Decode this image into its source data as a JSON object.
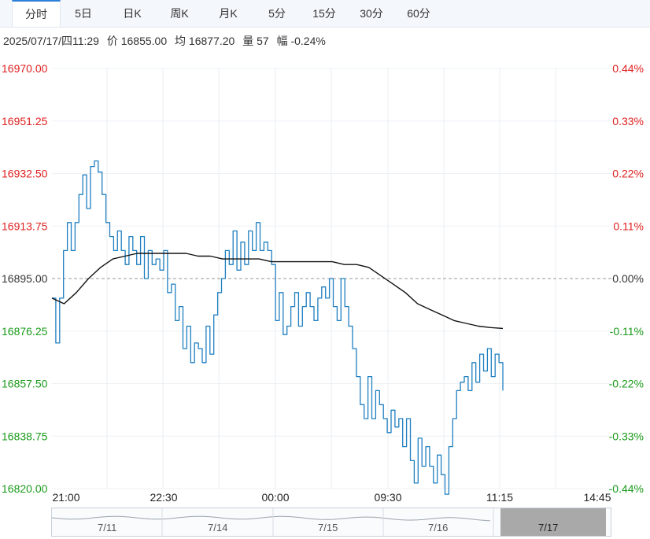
{
  "tabs": [
    {
      "label": "分时",
      "active": true
    },
    {
      "label": "5日",
      "active": false
    },
    {
      "label": "日K",
      "active": false
    },
    {
      "label": "周K",
      "active": false
    },
    {
      "label": "月K",
      "active": false
    },
    {
      "label": "5分",
      "active": false
    },
    {
      "label": "15分",
      "active": false
    },
    {
      "label": "30分",
      "active": false
    },
    {
      "label": "60分",
      "active": false
    }
  ],
  "info": {
    "datetime": "2025/07/17/四11:29",
    "price": "价 16855.00",
    "avg": "均 16877.20",
    "volume": "量 57",
    "change": "幅 -0.24%"
  },
  "colors": {
    "up": "#e02020",
    "down": "#1a9a1a",
    "price_line": "#1f7fc0",
    "avg_line": "#111111",
    "base": "#333333"
  },
  "chart_data": {
    "type": "line",
    "base_price": 16895.0,
    "ylim": [
      16820.0,
      16970.0
    ],
    "y_ticks_left": [
      "16970.00",
      "16951.25",
      "16932.50",
      "16913.75",
      "16895.00",
      "16876.25",
      "16857.50",
      "16838.75",
      "16820.00"
    ],
    "y_ticks_right": [
      "0.44%",
      "0.33%",
      "0.22%",
      "0.11%",
      "0.00%",
      "-0.11%",
      "-0.22%",
      "-0.33%",
      "-0.44%"
    ],
    "x_ticks": [
      "21:00",
      "22:30",
      "00:00",
      "09:30",
      "11:15",
      "14:45"
    ],
    "series": [
      {
        "role": "price",
        "values": [
          16888,
          16872,
          16888,
          16905,
          16915,
          16905,
          16915,
          16925,
          16932,
          16920,
          16935,
          16937,
          16933,
          16925,
          16915,
          16910,
          16905,
          16912,
          16905,
          16900,
          16910,
          16905,
          16900,
          16910,
          16895,
          16905,
          16900,
          16902,
          16898,
          16905,
          16890,
          16893,
          16880,
          16885,
          16870,
          16878,
          16865,
          16872,
          16870,
          16865,
          16878,
          16868,
          16882,
          16890,
          16895,
          16905,
          16900,
          16912,
          16898,
          16908,
          16900,
          16912,
          16905,
          16915,
          16905,
          16908,
          16905,
          16900,
          16880,
          16890,
          16875,
          16878,
          16885,
          16890,
          16878,
          16885,
          16890,
          16885,
          16880,
          16888,
          16892,
          16888,
          16895,
          16885,
          16880,
          16895,
          16885,
          16878,
          16870,
          16860,
          16850,
          16845,
          16860,
          16845,
          16855,
          16850,
          16845,
          16840,
          16848,
          16842,
          16845,
          16835,
          16845,
          16830,
          16822,
          16838,
          16828,
          16835,
          16828,
          16822,
          16832,
          16825,
          16818,
          16835,
          16845,
          16855,
          16858,
          16860,
          16855,
          16865,
          16858,
          16868,
          16862,
          16870,
          16860,
          16868,
          16865,
          16855
        ],
        "x_end_time": "11:29"
      },
      {
        "role": "average",
        "values": [
          16888,
          16886,
          16890,
          16895,
          16899,
          16902,
          16903,
          16904,
          16904,
          16904,
          16904,
          16904,
          16903,
          16903,
          16902,
          16902,
          16902,
          16902,
          16901,
          16901,
          16901,
          16901,
          16901,
          16901,
          16900,
          16900,
          16899,
          16896,
          16893,
          16890,
          16886,
          16884,
          16882,
          16880,
          16879,
          16878,
          16877.5,
          16877.2
        ],
        "x_end_time": "11:29"
      }
    ]
  },
  "navigator": {
    "labels": [
      "7/11",
      "7/14",
      "7/15",
      "7/16",
      "7/17"
    ]
  }
}
